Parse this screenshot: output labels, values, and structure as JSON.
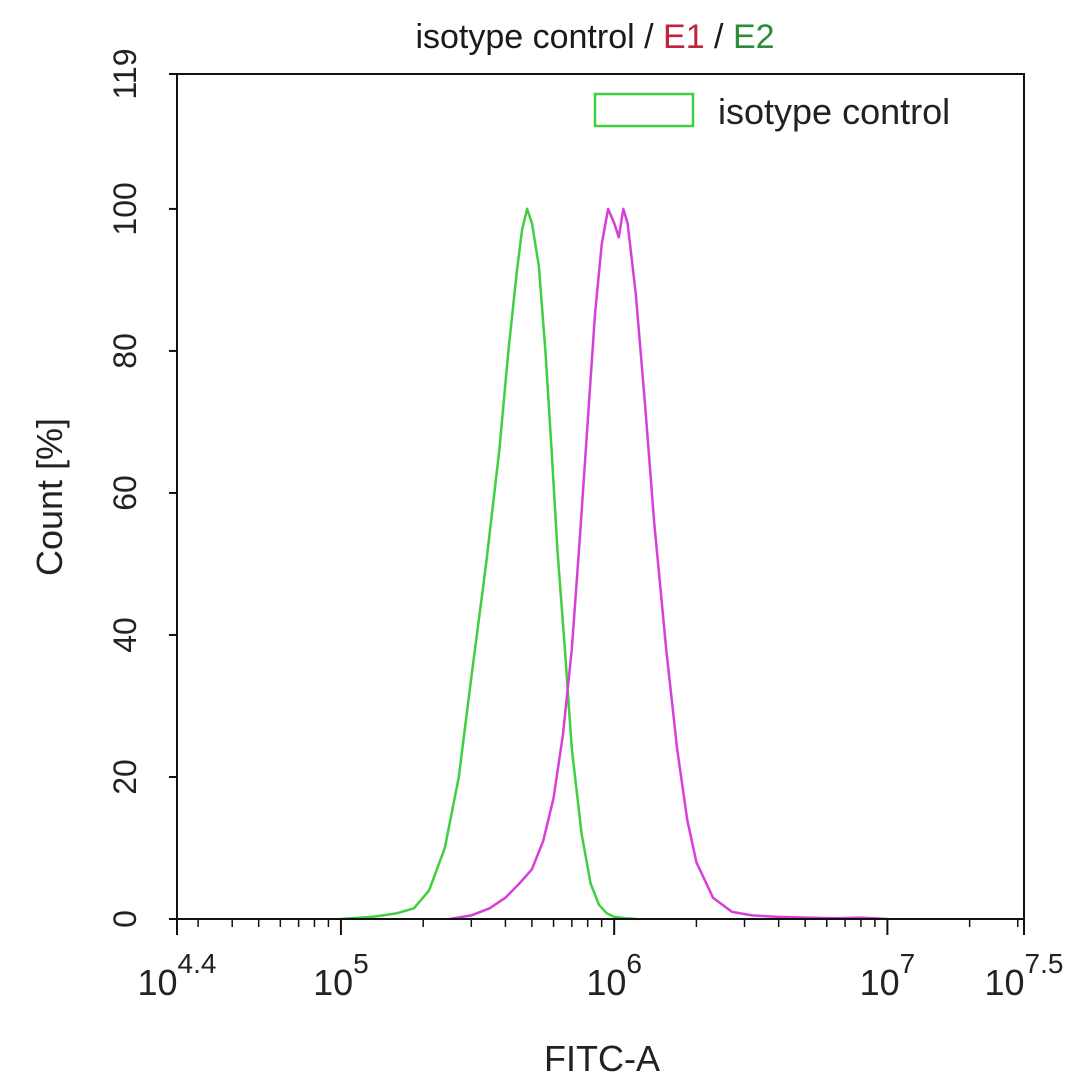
{
  "chart_data": {
    "type": "line",
    "title_parts": [
      {
        "text": "isotype control",
        "color": "#1a1a1a"
      },
      {
        "text": " / ",
        "color": "#1a1a1a"
      },
      {
        "text": "E1",
        "color": "#c0233d"
      },
      {
        "text": " / ",
        "color": "#1a1a1a"
      },
      {
        "text": "E2",
        "color": "#2e8b3a"
      }
    ],
    "xlabel": "FITC-A",
    "ylabel": "Count  [%]",
    "x_scale": "log",
    "xlim": [
      25118.86,
      31622776.6
    ],
    "ylim": [
      0,
      119
    ],
    "x_ticks": [
      {
        "value": 25118.86,
        "base": "10",
        "exp": "4.4"
      },
      {
        "value": 100000,
        "base": "10",
        "exp": "5"
      },
      {
        "value": 1000000,
        "base": "10",
        "exp": "6"
      },
      {
        "value": 10000000,
        "base": "10",
        "exp": "7"
      },
      {
        "value": 31622776.6,
        "base": "10",
        "exp": "7.5"
      }
    ],
    "y_ticks": [
      0,
      20,
      40,
      60,
      80,
      100,
      119
    ],
    "legend": {
      "position": "top-right",
      "entries": [
        {
          "label": "isotype control",
          "color": "#3fcf3f"
        }
      ]
    },
    "series": [
      {
        "color": "#3fcf3f",
        "x": [
          100000,
          130000,
          160000,
          185000,
          210000,
          240000,
          270000,
          300000,
          340000,
          380000,
          410000,
          440000,
          460000,
          480000,
          500000,
          530000,
          560000,
          590000,
          620000,
          660000,
          700000,
          760000,
          820000,
          880000,
          940000,
          1000000,
          1100000,
          1200000
        ],
        "y": [
          0,
          0.3,
          0.8,
          1.5,
          4,
          10,
          20,
          34,
          50,
          66,
          80,
          91,
          97,
          100,
          98,
          92,
          80,
          66,
          52,
          38,
          24,
          12,
          5,
          2,
          0.8,
          0.3,
          0.1,
          0
        ]
      },
      {
        "color": "#d83fd8",
        "x": [
          250000,
          300000,
          350000,
          400000,
          450000,
          500000,
          550000,
          600000,
          650000,
          700000,
          750000,
          800000,
          850000,
          900000,
          950000,
          1000000,
          1040000,
          1080000,
          1120000,
          1200000,
          1300000,
          1400000,
          1550000,
          1700000,
          1850000,
          2000000,
          2300000,
          2700000,
          3200000,
          4000000,
          5000000,
          6500000,
          8000000,
          10000000
        ],
        "y": [
          0,
          0.5,
          1.5,
          3,
          5,
          7,
          11,
          17,
          26,
          38,
          54,
          70,
          85,
          95,
          100,
          98,
          96,
          100,
          98,
          88,
          72,
          56,
          38,
          24,
          14,
          8,
          3,
          1,
          0.5,
          0.3,
          0.2,
          0.1,
          0.2,
          0
        ]
      }
    ]
  }
}
